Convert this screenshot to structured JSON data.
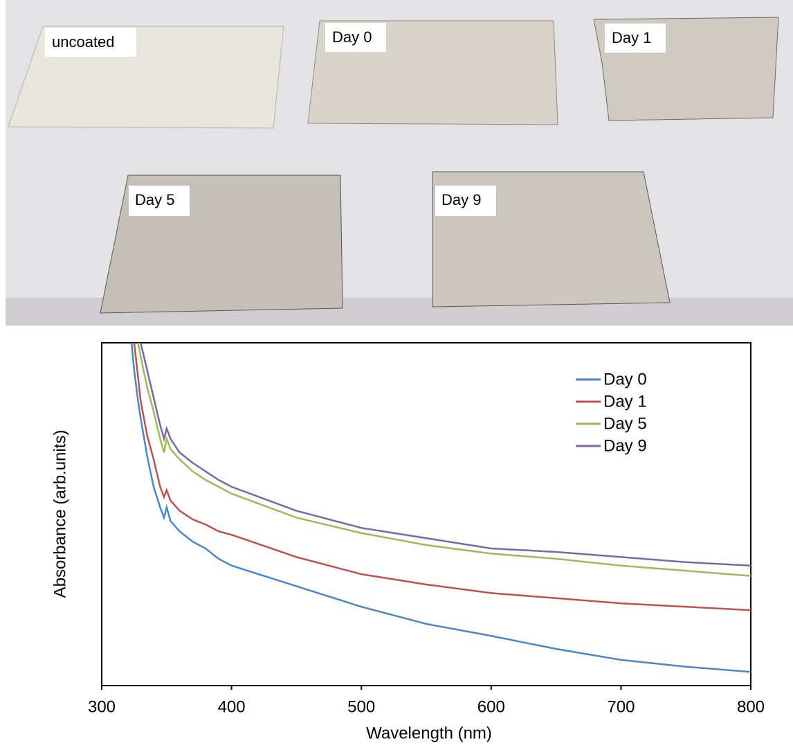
{
  "photo": {
    "labels": [
      "uncoated",
      "Day 0",
      "Day 1",
      "Day 5",
      "Day 9"
    ]
  },
  "chart_data": {
    "type": "line",
    "xlabel": "Wavelength (nm)",
    "ylabel": "Absorbance (arb.units)",
    "x": [
      323,
      325,
      328,
      330,
      335,
      340,
      345,
      348,
      350,
      353,
      360,
      370,
      380,
      390,
      400,
      450,
      500,
      550,
      600,
      650,
      700,
      750,
      800
    ],
    "series": [
      {
        "name": "Day 0",
        "color": "#4a86c8",
        "values": [
          100,
          92,
          83,
          78,
          67,
          58,
          52,
          49,
          52,
          48,
          45,
          42,
          40,
          37,
          35,
          29,
          23,
          18,
          14.5,
          10.7,
          7.5,
          5.5,
          4
        ]
      },
      {
        "name": "Day 1",
        "color": "#c0504d",
        "values": [
          null,
          100,
          90,
          83,
          73,
          66,
          58,
          55,
          57,
          54,
          51,
          48.5,
          47,
          45,
          44,
          37.5,
          32.5,
          29.5,
          27,
          25.5,
          24,
          23,
          22
        ]
      },
      {
        "name": "Day 5",
        "color": "#9bbb59",
        "values": [
          null,
          null,
          100,
          96,
          87,
          80,
          72,
          68,
          72,
          69,
          66,
          62.5,
          60,
          58,
          56,
          49,
          44.5,
          41,
          38.5,
          37,
          35,
          33.5,
          32
        ]
      },
      {
        "name": "Day 9",
        "color": "#8064a2",
        "values": [
          null,
          null,
          null,
          100,
          92,
          84,
          76,
          72,
          75,
          72,
          68,
          65,
          62.5,
          60,
          58,
          51,
          46,
          43,
          40,
          39,
          37.5,
          36,
          35
        ]
      }
    ],
    "xlim": [
      300,
      800
    ],
    "xticks": [
      300,
      400,
      500,
      600,
      700,
      800
    ],
    "ylim": [
      0,
      100
    ],
    "legend": "upper right"
  }
}
